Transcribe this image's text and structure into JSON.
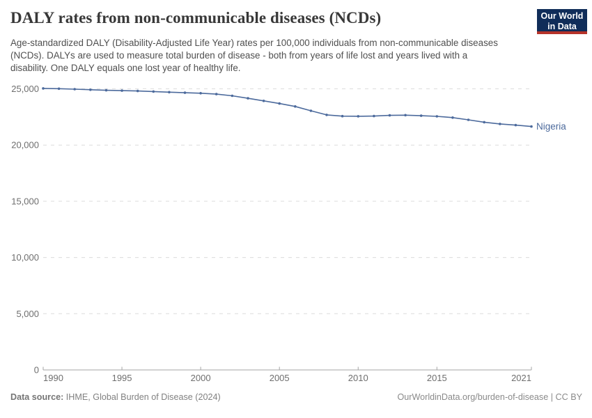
{
  "header": {
    "title": "DALY rates from non-communicable diseases (NCDs)",
    "subtitle": "Age-standardized DALY (Disability-Adjusted Life Year) rates per 100,000 individuals from non-communicable diseases (NCDs). DALYs are used to measure total burden of disease - both from years of life lost and years lived with a disability. One DALY equals one lost year of healthy life.",
    "logo": {
      "line1": "Our World",
      "line2": "in Data"
    }
  },
  "footer": {
    "source_label": "Data source:",
    "source_text": " IHME, Global Burden of Disease (2024)",
    "credit": "OurWorldinData.org/burden-of-disease | CC BY"
  },
  "colors": {
    "line": "#4C6A9C",
    "gridline": "#dcdcdc",
    "axis": "#a5a5a5",
    "tick_label": "#6e6e6e",
    "logo_bg": "#102d59",
    "logo_stripe": "#b5332a"
  },
  "chart_data": {
    "type": "line",
    "title": "DALY rates from non-communicable diseases (NCDs)",
    "entity_label": "Nigeria",
    "years": [
      1990,
      1991,
      1992,
      1993,
      1994,
      1995,
      1996,
      1997,
      1998,
      1999,
      2000,
      2001,
      2002,
      2003,
      2004,
      2005,
      2006,
      2007,
      2008,
      2009,
      2010,
      2011,
      2012,
      2013,
      2014,
      2015,
      2016,
      2017,
      2018,
      2019,
      2020,
      2021
    ],
    "series": [
      {
        "name": "Nigeria",
        "color": "#4C6A9C",
        "values": [
          25040,
          25010,
          24970,
          24920,
          24870,
          24840,
          24810,
          24760,
          24700,
          24650,
          24610,
          24530,
          24380,
          24160,
          23930,
          23690,
          23430,
          23050,
          22680,
          22570,
          22560,
          22580,
          22640,
          22660,
          22610,
          22550,
          22440,
          22240,
          22030,
          21880,
          21770,
          21650
        ]
      }
    ],
    "xlim": [
      1990,
      2021
    ],
    "ylim": [
      0,
      25000
    ],
    "x_ticks": [
      1990,
      1995,
      2000,
      2005,
      2010,
      2015,
      2021
    ],
    "y_ticks": [
      0,
      5000,
      10000,
      15000,
      20000,
      25000
    ],
    "grid": "horizontal-dashed",
    "legend_position": "end-of-line-label",
    "markers": true
  }
}
